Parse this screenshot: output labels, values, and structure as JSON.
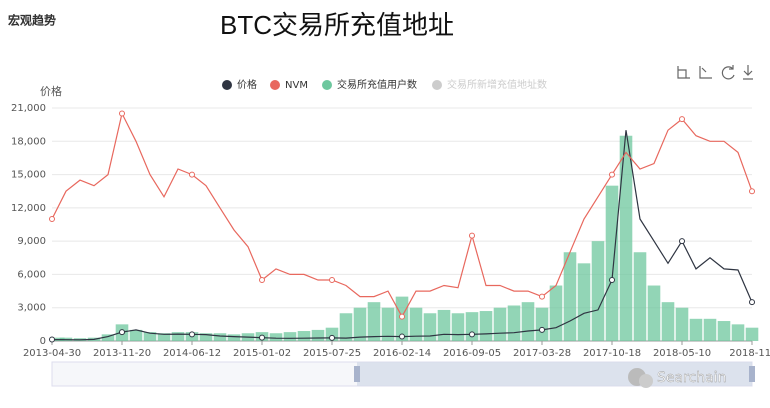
{
  "header": "宏观趋势",
  "watermark": "Searchain",
  "chart_data": {
    "type": "line",
    "title": "BTC交易所充值地址",
    "y_label": "价格",
    "categories": [
      "2013-04-30",
      null,
      null,
      null,
      null,
      "2013-11-20",
      null,
      null,
      null,
      null,
      "2014-06-12",
      null,
      null,
      null,
      null,
      "2015-01-02",
      null,
      null,
      null,
      null,
      "2015-07-25",
      null,
      null,
      null,
      null,
      "2016-02-14",
      null,
      null,
      null,
      null,
      "2016-09-05",
      null,
      null,
      null,
      null,
      "2017-03-28",
      null,
      null,
      null,
      null,
      "2017-10-18",
      null,
      null,
      null,
      null,
      "2018-05-10",
      null,
      null,
      null,
      null,
      "2018-11-"
    ],
    "ylim": [
      0,
      21000
    ],
    "yticks": [
      0,
      {
        "value": 3000,
        "label": "3,000"
      },
      {
        "value": 6000,
        "label": "6,000"
      },
      {
        "value": 9000,
        "label": "9,000"
      },
      {
        "value": 12000,
        "label": "12,000"
      },
      {
        "value": 15000,
        "label": "15,000"
      },
      {
        "value": 18000,
        "label": "18,000"
      },
      {
        "value": 21000,
        "label": "21,000"
      }
    ],
    "grid": true,
    "series": [
      {
        "name": "价格",
        "color": "#2f3542",
        "type": "line",
        "values": [
          130,
          120,
          110,
          140,
          400,
          800,
          1000,
          700,
          600,
          620,
          600,
          580,
          450,
          400,
          350,
          300,
          250,
          240,
          250,
          270,
          280,
          260,
          350,
          400,
          420,
          400,
          430,
          450,
          600,
          580,
          600,
          640,
          700,
          750,
          900,
          1000,
          1200,
          1800,
          2500,
          2800,
          5500,
          19000,
          11000,
          9000,
          7000,
          9000,
          6500,
          7500,
          6500,
          6400,
          3500
        ]
      },
      {
        "name": "NVM",
        "color": "#e8685e",
        "type": "line",
        "values": [
          11000,
          13500,
          14500,
          14000,
          15000,
          20500,
          18000,
          15000,
          13000,
          15500,
          15000,
          14000,
          12000,
          10000,
          8500,
          5500,
          6500,
          6000,
          6000,
          5500,
          5500,
          5000,
          4000,
          4000,
          4500,
          2200,
          4500,
          4500,
          5000,
          4800,
          9500,
          5000,
          5000,
          4500,
          4500,
          4000,
          5000,
          8000,
          11000,
          13000,
          15000,
          17000,
          15500,
          16000,
          19000,
          20000,
          18500,
          18000,
          18000,
          17000,
          13500
        ]
      },
      {
        "name": "交易所充值用户数",
        "color": "#6dc79e",
        "type": "bar",
        "values": [
          300,
          300,
          250,
          300,
          600,
          1500,
          1000,
          800,
          700,
          800,
          800,
          700,
          700,
          600,
          700,
          800,
          700,
          800,
          900,
          1000,
          1200,
          2500,
          3000,
          3500,
          3000,
          4000,
          3000,
          2500,
          2800,
          2500,
          2600,
          2700,
          3000,
          3200,
          3500,
          3000,
          5000,
          8000,
          7000,
          9000,
          14000,
          18500,
          8000,
          5000,
          3500,
          3000,
          2000,
          2000,
          1800,
          1500,
          1200
        ]
      },
      {
        "name": "交易所新增充值地址数",
        "color": "#cccccc",
        "visible": false
      }
    ]
  }
}
